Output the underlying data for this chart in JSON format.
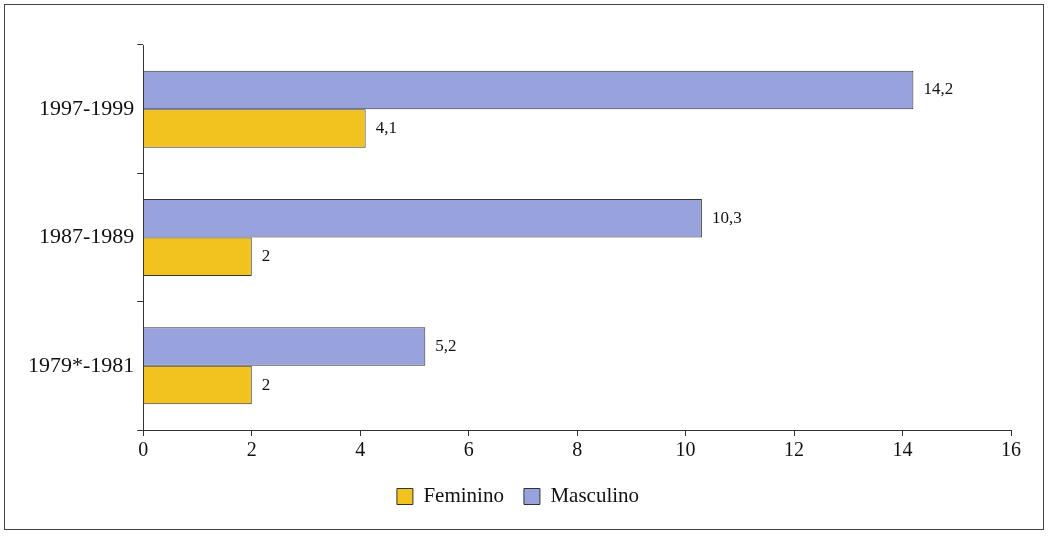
{
  "chart_data": {
    "type": "bar",
    "orientation": "horizontal",
    "categories": [
      "1997-1999",
      "1987-1989",
      "1979*-1981"
    ],
    "series": [
      {
        "name": "Feminino",
        "color": "#f2c21f",
        "values": [
          4.1,
          2,
          2
        ],
        "value_labels": [
          "4,1",
          "2",
          "2"
        ]
      },
      {
        "name": "Masculino",
        "color": "#98a3dd",
        "values": [
          14.2,
          10.3,
          5.2
        ],
        "value_labels": [
          "14,2",
          "10,3",
          "5,2"
        ]
      }
    ],
    "xlim": [
      0,
      16
    ],
    "xticks": [
      0,
      2,
      4,
      6,
      8,
      10,
      12,
      14,
      16
    ],
    "grid": false,
    "legend": "bottom"
  }
}
